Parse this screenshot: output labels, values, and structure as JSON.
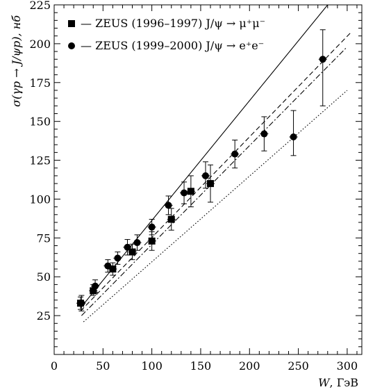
{
  "chart_data": {
    "type": "scatter",
    "xlabel_italic": "W",
    "xlabel_rest": ", ГэВ",
    "ylabel": "σ(γp → J/ψp), нб",
    "xlim": [
      0,
      315
    ],
    "ylim": [
      0,
      225
    ],
    "x_ticks": [
      0,
      50,
      100,
      150,
      200,
      250,
      300
    ],
    "y_ticks": [
      25,
      50,
      75,
      100,
      125,
      150,
      175,
      200,
      225
    ],
    "legend_position": "top-left",
    "series": [
      {
        "name": "— ZEUS (1996–1997) J/ψ → μ⁺μ⁻",
        "marker": "square",
        "points": [
          {
            "x": 27,
            "y": 33,
            "ylo": 29,
            "yhi": 37
          },
          {
            "x": 40,
            "y": 41,
            "ylo": 38,
            "yhi": 45
          },
          {
            "x": 60,
            "y": 55,
            "ylo": 51,
            "yhi": 59
          },
          {
            "x": 80,
            "y": 66,
            "ylo": 61,
            "yhi": 71
          },
          {
            "x": 100,
            "y": 73,
            "ylo": 67,
            "yhi": 79
          },
          {
            "x": 120,
            "y": 87,
            "ylo": 80,
            "yhi": 94
          },
          {
            "x": 140,
            "y": 105,
            "ylo": 95,
            "yhi": 115
          },
          {
            "x": 160,
            "y": 110,
            "ylo": 98,
            "yhi": 122
          }
        ]
      },
      {
        "name": "— ZEUS (1999–2000) J/ψ → e⁺e⁻",
        "marker": "circle",
        "points": [
          {
            "x": 28,
            "y": 33,
            "ylo": 28,
            "yhi": 38
          },
          {
            "x": 42,
            "y": 44,
            "ylo": 40,
            "yhi": 48
          },
          {
            "x": 55,
            "y": 57,
            "ylo": 53,
            "yhi": 61
          },
          {
            "x": 65,
            "y": 62,
            "ylo": 58,
            "yhi": 66
          },
          {
            "x": 75,
            "y": 69,
            "ylo": 64,
            "yhi": 74
          },
          {
            "x": 85,
            "y": 72,
            "ylo": 67,
            "yhi": 77
          },
          {
            "x": 100,
            "y": 82,
            "ylo": 77,
            "yhi": 87
          },
          {
            "x": 117,
            "y": 96,
            "ylo": 90,
            "yhi": 102
          },
          {
            "x": 133,
            "y": 104,
            "ylo": 97,
            "yhi": 111
          },
          {
            "x": 155,
            "y": 115,
            "ylo": 107,
            "yhi": 124
          },
          {
            "x": 185,
            "y": 129,
            "ylo": 120,
            "yhi": 138
          },
          {
            "x": 215,
            "y": 142,
            "ylo": 131,
            "yhi": 153
          },
          {
            "x": 245,
            "y": 140,
            "ylo": 128,
            "yhi": 157
          },
          {
            "x": 275,
            "y": 190,
            "ylo": 160,
            "yhi": 209
          }
        ]
      }
    ],
    "curves": [
      {
        "style": "solid",
        "points": [
          [
            27,
            30
          ],
          [
            280,
            225
          ]
        ]
      },
      {
        "style": "dashed",
        "points": [
          [
            27,
            28
          ],
          [
            305,
            208
          ]
        ]
      },
      {
        "style": "dashdot",
        "points": [
          [
            28,
            25
          ],
          [
            300,
            198
          ]
        ]
      },
      {
        "style": "dotted",
        "points": [
          [
            30,
            21
          ],
          [
            300,
            170
          ]
        ]
      }
    ]
  }
}
